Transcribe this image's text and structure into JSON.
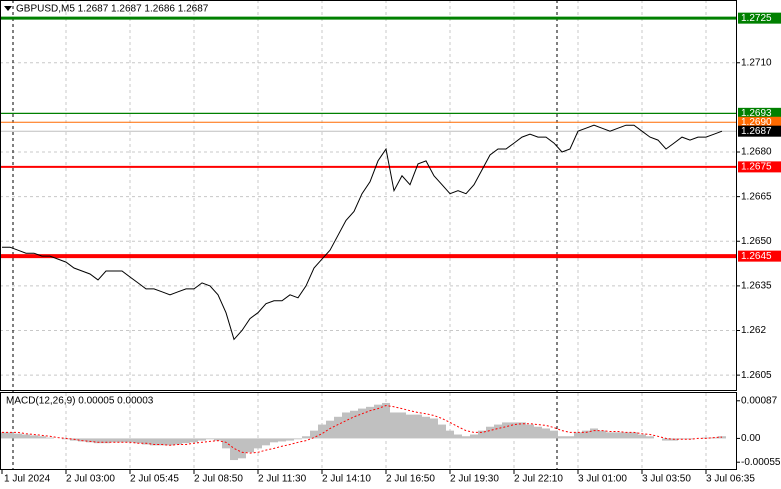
{
  "chart_data": [
    {
      "type": "line",
      "title": "GBPUSD,M5  1.2687 1.2687 1.2686 1.2687",
      "color": "#000000",
      "categories": [
        "1 Jul 2024",
        null,
        null,
        null,
        null,
        null,
        null,
        null,
        "2 Jul 03:00",
        null,
        null,
        null,
        null,
        null,
        null,
        null,
        "2 Jul 05:45",
        null,
        null,
        null,
        null,
        null,
        null,
        null,
        "2 Jul 08:50",
        null,
        null,
        null,
        null,
        null,
        null,
        null,
        "2 Jul 11:30",
        null,
        null,
        null,
        null,
        null,
        null,
        null,
        "2 Jul 14:10",
        null,
        null,
        null,
        null,
        null,
        null,
        null,
        "2 Jul 16:50",
        null,
        null,
        null,
        null,
        null,
        null,
        null,
        "2 Jul 19:30",
        null,
        null,
        null,
        null,
        null,
        null,
        null,
        "2 Jul 22:10",
        null,
        null,
        null,
        null,
        null,
        null,
        null,
        "3 Jul 01:00",
        null,
        null,
        null,
        null,
        null,
        null,
        null,
        "3 Jul 03:50",
        null,
        null,
        null,
        null,
        null,
        null,
        null,
        "3 Jul 06:35",
        null,
        null
      ],
      "values": [
        1.2648,
        1.2648,
        1.2647,
        1.2646,
        1.2646,
        1.2645,
        1.2645,
        1.2644,
        1.2643,
        1.2641,
        1.264,
        1.2639,
        1.2637,
        1.264,
        1.264,
        1.264,
        1.2638,
        1.2636,
        1.2634,
        1.2634,
        1.2633,
        1.2632,
        1.2633,
        1.2634,
        1.2634,
        1.2636,
        1.2635,
        1.2632,
        1.2626,
        1.2617,
        1.262,
        1.2624,
        1.2626,
        1.2629,
        1.263,
        1.263,
        1.2632,
        1.2631,
        1.2635,
        1.2641,
        1.2644,
        1.2647,
        1.2652,
        1.2657,
        1.266,
        1.2666,
        1.267,
        1.2677,
        1.2681,
        1.2667,
        1.2672,
        1.2669,
        1.2676,
        1.2677,
        1.2672,
        1.2669,
        1.2666,
        1.2667,
        1.2666,
        1.2669,
        1.2674,
        1.2679,
        1.2681,
        1.2681,
        1.2683,
        1.2685,
        1.2686,
        1.2685,
        1.2685,
        1.2683,
        1.268,
        1.2681,
        1.2687,
        1.2688,
        1.2689,
        1.2688,
        1.2687,
        1.2688,
        1.2689,
        1.2689,
        1.2687,
        1.2685,
        1.2684,
        1.2681,
        1.2683,
        1.2685,
        1.2684,
        1.2685,
        1.2685,
        1.2686,
        1.2687
      ],
      "ylim": [
        1.26,
        1.27311
      ],
      "yticks": [
        1.2605,
        1.262,
        1.2635,
        {
          "value": 1.265,
          "label": "1.2650"
        },
        1.2665,
        {
          "value": 1.268,
          "label": "1.2680"
        },
        {
          "value": 1.271,
          "label": "1.2710"
        }
      ],
      "grid": true,
      "levels": [
        {
          "value": 1.2725,
          "label": "1.2725",
          "color": "#008000"
        },
        {
          "value": 1.2693,
          "label": "1.2693",
          "color": "#008000"
        },
        {
          "value": 1.269,
          "label": "1.2690",
          "color": "#ff6a00"
        },
        {
          "value": 1.2687,
          "label": "1.2687",
          "color": "#000000"
        },
        {
          "value": 1.2675,
          "label": "1.2675",
          "color": "#ff0000"
        },
        {
          "value": 1.2645,
          "label": "1.2645",
          "color": "#ff0000"
        }
      ]
    },
    {
      "type": "macd",
      "title": "MACD(12,26,9) 0.00005 0.00003",
      "ylim": [
        -0.00073,
        0.00105
      ],
      "yticks": [
        0.00087,
        {
          "value": 0,
          "label": "0.00"
        },
        -0.00055
      ],
      "series": [
        {
          "color": "#c0c0c0",
          "values": [
            0.00014,
            0.00014,
            0.00011,
            9e-05,
            7e-05,
            5e-05,
            2e-05,
            0,
            -2e-05,
            -5e-05,
            -7e-05,
            -9e-05,
            -0.00011,
            -0.00011,
            -9e-05,
            -9e-05,
            -9e-05,
            -0.00011,
            -0.00014,
            -0.00016,
            -0.00016,
            -0.00016,
            -0.00014,
            -0.00011,
            -9e-05,
            -5e-05,
            -2e-05,
            -5e-05,
            -0.00023,
            -0.0005,
            -0.00046,
            -0.00032,
            -0.00023,
            -0.00016,
            -9e-05,
            -7e-05,
            -5e-05,
            -2e-05,
            5e-05,
            0.00018,
            0.00032,
            0.00041,
            0.0005,
            0.0006,
            0.00064,
            0.00069,
            0.00073,
            0.00078,
            0.00082,
            0.0006,
            0.0006,
            0.00055,
            0.00055,
            0.0005,
            0.00046,
            0.00032,
            0.00018,
            9e-05,
            5e-05,
            9e-05,
            0.00018,
            0.00027,
            0.00032,
            0.00037,
            0.00037,
            0.00037,
            0.00032,
            0.00027,
            0.00023,
            0.00018,
            5e-05,
            5e-05,
            0.00014,
            0.00018,
            0.00023,
            0.00018,
            0.00014,
            0.00014,
            0.00014,
            0.00014,
            9e-05,
            5e-05,
            0,
            -5e-05,
            -5e-05,
            -2e-05,
            -2e-05,
            0,
            2e-05,
            2e-05,
            5e-05
          ]
        },
        {
          "color": "#ff0000",
          "values": [
            0.00014,
            0.00014,
            0.00014,
            0.00011,
            9e-05,
            7e-05,
            5e-05,
            2e-05,
            0,
            -2e-05,
            -5e-05,
            -7e-05,
            -9e-05,
            -9e-05,
            -9e-05,
            -9e-05,
            -9e-05,
            -0.00011,
            -0.00011,
            -0.00014,
            -0.00014,
            -0.00016,
            -0.00014,
            -0.00014,
            -0.00011,
            -9e-05,
            -7e-05,
            -5e-05,
            -9e-05,
            -0.00023,
            -0.00032,
            -0.00034,
            -0.00032,
            -0.00027,
            -0.00023,
            -0.00018,
            -0.00014,
            -9e-05,
            -5e-05,
            2e-05,
            0.00011,
            0.00023,
            0.00032,
            0.00041,
            0.0005,
            0.00057,
            0.00064,
            0.00069,
            0.00076,
            0.00073,
            0.00069,
            0.00064,
            0.0006,
            0.00057,
            0.00053,
            0.00046,
            0.00037,
            0.00027,
            0.00018,
            0.00014,
            0.00014,
            0.00018,
            0.00023,
            0.00027,
            0.00032,
            0.00034,
            0.00034,
            0.00032,
            0.0003,
            0.00025,
            0.00018,
            0.00014,
            0.00014,
            0.00014,
            0.00018,
            0.00018,
            0.00016,
            0.00016,
            0.00014,
            0.00014,
            0.00011,
            9e-05,
            5e-05,
            0,
            -2e-05,
            -2e-05,
            -2e-05,
            0,
            0,
            2e-05,
            3e-05
          ]
        }
      ]
    }
  ]
}
